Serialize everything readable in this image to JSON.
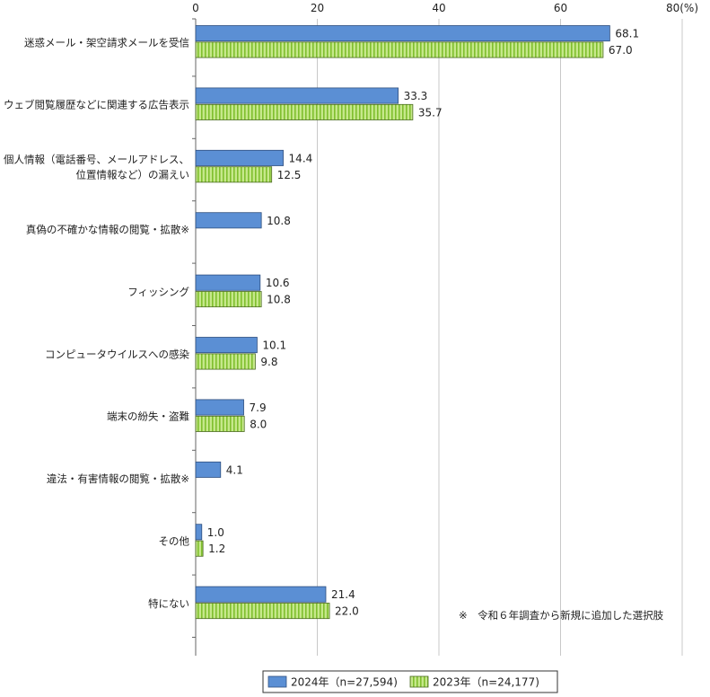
{
  "chart_data": {
    "type": "bar",
    "orientation": "horizontal",
    "x_ticks": [
      "0",
      "20",
      "40",
      "60",
      "80(%)"
    ],
    "xlim": [
      0,
      80
    ],
    "categories": [
      [
        "迷惑メール・架空請求メールを受信"
      ],
      [
        "ウェブ閲覧履歴などに関連する広告表示"
      ],
      [
        "個人情報（電話番号、メールアドレス、",
        "位置情報など）の漏えい"
      ],
      [
        "真偽の不確かな情報の閲覧・拡散※"
      ],
      [
        "フィッシング"
      ],
      [
        "コンピュータウイルスへの感染"
      ],
      [
        "端末の紛失・盗難"
      ],
      [
        "違法・有害情報の閲覧・拡散※"
      ],
      [
        "その他"
      ],
      [
        "特にない"
      ]
    ],
    "series": [
      {
        "name": "2024年（n=27,594)",
        "color": "#5b8fd4",
        "pattern": "solid",
        "values": [
          68.1,
          33.3,
          14.4,
          10.8,
          10.6,
          10.1,
          7.9,
          4.1,
          1.0,
          21.4
        ]
      },
      {
        "name": "2023年（n=24,177)",
        "color": "#c6e88b",
        "pattern": "vertical-stripes",
        "stripe_color": "#7fbf2e",
        "values": [
          67.0,
          35.7,
          12.5,
          null,
          10.8,
          9.8,
          8.0,
          null,
          1.2,
          22.0
        ]
      }
    ],
    "grid": "vertical",
    "legend": "bottom-center",
    "annotations": [
      "※　令和６年調査から新規に追加した選択肢"
    ]
  }
}
